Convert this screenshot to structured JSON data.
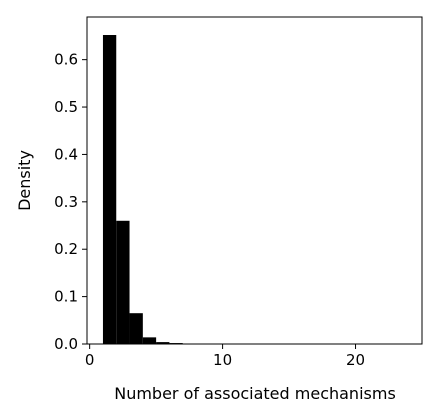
{
  "chart_data": {
    "type": "bar",
    "title": "",
    "xlabel": "Number of associated mechanisms",
    "ylabel": "Density",
    "xlim": [
      -0.2,
      25.0
    ],
    "ylim": [
      0.0,
      0.69
    ],
    "xticks": [
      0,
      10,
      20
    ],
    "xtick_labels": [
      "0",
      "10",
      "20"
    ],
    "yticks": [
      0.0,
      0.1,
      0.2,
      0.3,
      0.4,
      0.5,
      0.6
    ],
    "ytick_labels": [
      "0.0",
      "0.1",
      "0.2",
      "0.3",
      "0.4",
      "0.5",
      "0.6"
    ],
    "grid": false,
    "bar_color": "#000000",
    "bin_width": 1.0,
    "bins": [
      {
        "x_start": 1,
        "value": 0.652
      },
      {
        "x_start": 2,
        "value": 0.26
      },
      {
        "x_start": 3,
        "value": 0.065
      },
      {
        "x_start": 4,
        "value": 0.014
      },
      {
        "x_start": 5,
        "value": 0.004
      },
      {
        "x_start": 6,
        "value": 0.002
      },
      {
        "x_start": 7,
        "value": 0.001
      },
      {
        "x_start": 8,
        "value": 0.001
      }
    ]
  }
}
